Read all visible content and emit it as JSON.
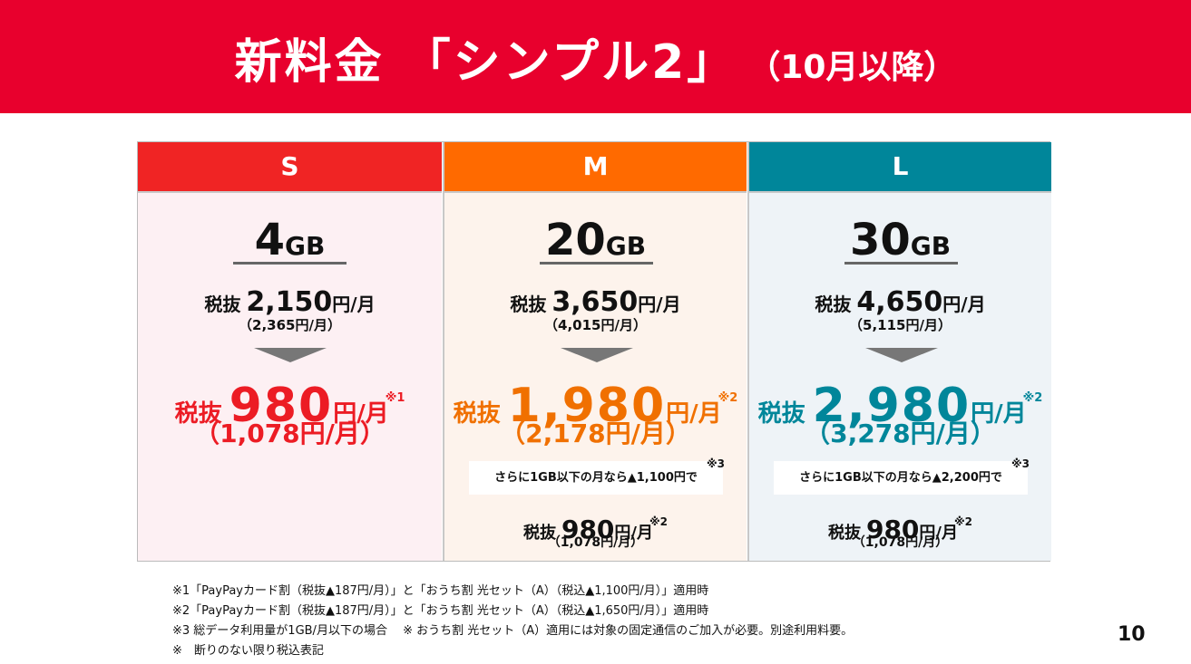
{
  "header": {
    "title": "新料金 「シンプル2」",
    "subtitle": "（10月以降）"
  },
  "plans": [
    {
      "name": "S",
      "data": "4",
      "data_unit": "GB",
      "old_label": "税抜",
      "old_price": "2,150",
      "old_unit": "円/月",
      "old_tax_incl": "（2,365円/月）",
      "new_label": "税抜",
      "new_price": "980",
      "new_unit": "円/月",
      "new_note": "※1",
      "new_tax_incl": "（1,078円/月）"
    },
    {
      "name": "M",
      "data": "20",
      "data_unit": "GB",
      "old_label": "税抜",
      "old_price": "3,650",
      "old_unit": "円/月",
      "old_tax_incl": "（4,015円/月）",
      "new_label": "税抜",
      "new_price": "1,980",
      "new_unit": "円/月",
      "new_note": "※2",
      "new_tax_incl": "（2,178円/月）",
      "extra": {
        "text": "さらに1GB以下の月なら▲1,100円で",
        "note": "※3",
        "label": "税抜",
        "price": "980",
        "unit": "円/月",
        "price_note": "※2",
        "tax_incl": "（1,078円/月）"
      }
    },
    {
      "name": "L",
      "data": "30",
      "data_unit": "GB",
      "old_label": "税抜",
      "old_price": "4,650",
      "old_unit": "円/月",
      "old_tax_incl": "（5,115円/月）",
      "new_label": "税抜",
      "new_price": "2,980",
      "new_unit": "円/月",
      "new_note": "※2",
      "new_tax_incl": "（3,278円/月）",
      "extra": {
        "text": "さらに1GB以下の月なら▲2,200円で",
        "note": "※3",
        "label": "税抜",
        "price": "980",
        "unit": "円/月",
        "price_note": "※2",
        "tax_incl": "（1,078円/月）"
      }
    }
  ],
  "footnotes": [
    "※1「PayPayカード割（税抜▲187円/月）」と「おうち割 光セット（A）（税込▲1,100円/月）」適用時",
    "※2「PayPayカード割（税抜▲187円/月）」と「おうち割 光セット（A）（税込▲1,650円/月）」適用時",
    "※3 総データ利用量が1GB/月以下の場合　 ※ おうち割 光セット（A）適用には対象の固定通信のご加入が必要。別途利用料要。",
    "※　断りのない限り税込表記"
  ],
  "page_number": "10"
}
